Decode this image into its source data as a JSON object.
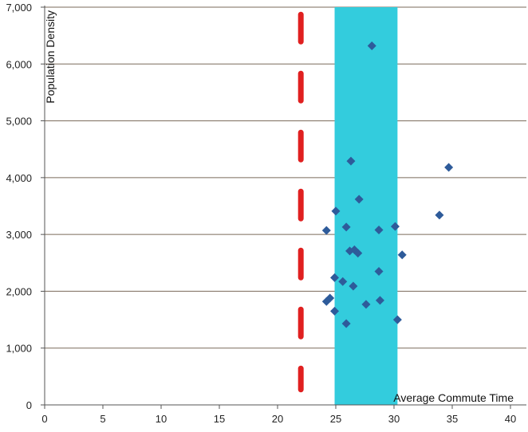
{
  "chart_data": {
    "type": "scatter",
    "title": "",
    "xlabel": "Average Commute Time",
    "ylabel": "Population Density",
    "xlim": [
      0,
      40
    ],
    "ylim": [
      0,
      7000
    ],
    "x_ticks": [
      "0",
      "5",
      "10",
      "15",
      "20",
      "25",
      "30",
      "35",
      "40"
    ],
    "y_ticks": [
      "0",
      "1,000",
      "2,000",
      "3,000",
      "4,000",
      "5,000",
      "6,000",
      "7,000"
    ],
    "grid": "horizontal",
    "points": [
      {
        "x": 28.1,
        "y": 6320
      },
      {
        "x": 26.3,
        "y": 4290
      },
      {
        "x": 34.7,
        "y": 4180
      },
      {
        "x": 27.0,
        "y": 3620
      },
      {
        "x": 25.0,
        "y": 3410
      },
      {
        "x": 33.9,
        "y": 3340
      },
      {
        "x": 30.1,
        "y": 3140
      },
      {
        "x": 25.9,
        "y": 3130
      },
      {
        "x": 24.2,
        "y": 3070
      },
      {
        "x": 28.7,
        "y": 3080
      },
      {
        "x": 26.2,
        "y": 2710
      },
      {
        "x": 26.6,
        "y": 2730
      },
      {
        "x": 26.9,
        "y": 2670
      },
      {
        "x": 30.7,
        "y": 2640
      },
      {
        "x": 28.7,
        "y": 2350
      },
      {
        "x": 24.9,
        "y": 2240
      },
      {
        "x": 25.6,
        "y": 2170
      },
      {
        "x": 26.5,
        "y": 2090
      },
      {
        "x": 24.5,
        "y": 1880
      },
      {
        "x": 24.2,
        "y": 1820
      },
      {
        "x": 28.8,
        "y": 1840
      },
      {
        "x": 27.6,
        "y": 1770
      },
      {
        "x": 24.9,
        "y": 1650
      },
      {
        "x": 30.3,
        "y": 1500
      },
      {
        "x": 25.9,
        "y": 1430
      }
    ],
    "highlight_band": {
      "x_from": 24.9,
      "x_to": 30.3,
      "color": "#33ccdd"
    },
    "reference_line": {
      "x": 22.0,
      "y_from": 270,
      "y_to": 6870,
      "style": "dashed",
      "color": "#e02020"
    },
    "marker_color": "#2e5b9a",
    "grid_color": "#7a6a5a"
  }
}
